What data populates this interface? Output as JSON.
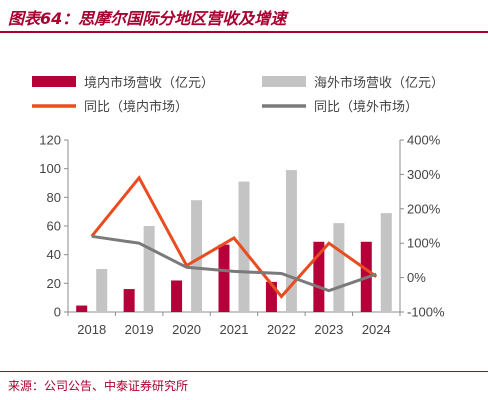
{
  "header": {
    "title": "图表64：思摩尔国际分地区营收及增速"
  },
  "footer": {
    "source": "来源：公司公告、中泰证券研究所"
  },
  "colors": {
    "accent": "#a8002f",
    "domestic_bar": "#b5003a",
    "overseas_bar": "#c4c4c4",
    "domestic_line": "#ea4b1f",
    "overseas_line": "#7a7a7a",
    "axis": "#8c8c8c"
  },
  "chart_data": {
    "type": "bar",
    "categories": [
      "2018",
      "2019",
      "2020",
      "2021",
      "2022",
      "2023",
      "2024"
    ],
    "series": [
      {
        "name": "境内市场营收（亿元）",
        "type": "bar",
        "axis": "left",
        "color": "#b5003a",
        "values": [
          4.5,
          16,
          22,
          47,
          21,
          49,
          49
        ]
      },
      {
        "name": "海外市场营收（亿元）",
        "type": "bar",
        "axis": "left",
        "color": "#c4c4c4",
        "values": [
          30,
          60,
          78,
          91,
          99,
          62,
          69
        ]
      },
      {
        "name": "同比（境内市场）",
        "type": "line",
        "axis": "right",
        "color": "#ea4b1f",
        "values": [
          120,
          290,
          35,
          115,
          -55,
          100,
          3
        ]
      },
      {
        "name": "同比（境外市场）",
        "type": "line",
        "axis": "right",
        "color": "#7a7a7a",
        "values": [
          120,
          100,
          30,
          18,
          12,
          -38,
          10
        ]
      }
    ],
    "y_left": {
      "ticks": [
        "0",
        "20",
        "40",
        "60",
        "80",
        "100",
        "120"
      ],
      "ylim": [
        0,
        120
      ]
    },
    "y_right": {
      "ticks": [
        "-100%",
        "0%",
        "100%",
        "200%",
        "300%",
        "400%"
      ],
      "ylim": [
        -100,
        400
      ]
    },
    "legend_position": "top",
    "grid": false
  }
}
